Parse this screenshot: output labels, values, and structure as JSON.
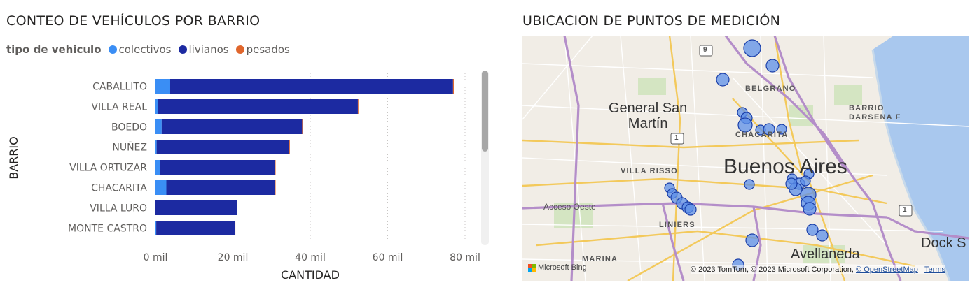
{
  "left_panel": {
    "title": "CONTEO DE VEHÍCULOS POR BARRIO",
    "legend_title": "tipo de vehiculo",
    "legend": [
      {
        "name": "colectivos",
        "color": "#3a8ef5"
      },
      {
        "name": "livianos",
        "color": "#1c2aa1"
      },
      {
        "name": "pesados",
        "color": "#e0662c"
      }
    ]
  },
  "chart_data": {
    "type": "bar",
    "orientation": "horizontal",
    "stacked": true,
    "title": "CONTEO DE VEHÍCULOS POR BARRIO",
    "xlabel": "CANTIDAD",
    "ylabel": "BARRIO",
    "xlim": [
      0,
      80000
    ],
    "x_ticks": [
      0,
      20000,
      40000,
      60000,
      80000
    ],
    "x_tick_labels": [
      "0 mil",
      "20 mil",
      "40 mil",
      "60 mil",
      "80 mil"
    ],
    "grid": "vertical dotted",
    "categories": [
      "CABALLITO",
      "VILLA REAL",
      "BOEDO",
      "NUÑEZ",
      "VILLA ORTUZAR",
      "CHACARITA",
      "VILLA LURO",
      "MONTE CASTRO"
    ],
    "series": [
      {
        "name": "colectivos",
        "color": "#3a8ef5",
        "values": [
          3800,
          700,
          1600,
          300,
          1200,
          2800,
          0,
          200
        ]
      },
      {
        "name": "livianos",
        "color": "#1c2aa1",
        "values": [
          73100,
          51600,
          36300,
          34300,
          29700,
          28100,
          21000,
          20300
        ]
      },
      {
        "name": "pesados",
        "color": "#e0662c",
        "values": [
          200,
          150,
          120,
          80,
          100,
          100,
          60,
          60
        ]
      }
    ]
  },
  "right_panel": {
    "title": "UBICACION DE PUNTOS DE MEDICIÓN",
    "map_labels": {
      "city": "Buenos Aires",
      "general_san_martin": "General San\nMartín",
      "belgrano": "BELGRANO",
      "chacarita": "CHACARITA",
      "villa_risso": "VILLA RISSO",
      "liniers": "LINIERS",
      "acceso_oeste": "Acceso Oeste",
      "barrio_darsena": "BARRIO\nDARSENA F",
      "marina": "MARINA",
      "avellaneda": "Avellaneda",
      "dock_sud": "Dock S",
      "route_9": "9",
      "route_1a": "1",
      "route_1b": "1"
    },
    "bing_logo_text": "Microsoft Bing",
    "attribution": {
      "text": "© 2023 TomTom, © 2023 Microsoft Corporation, ",
      "osm_link": "© OpenStreetMap",
      "terms_link": "Terms"
    }
  }
}
